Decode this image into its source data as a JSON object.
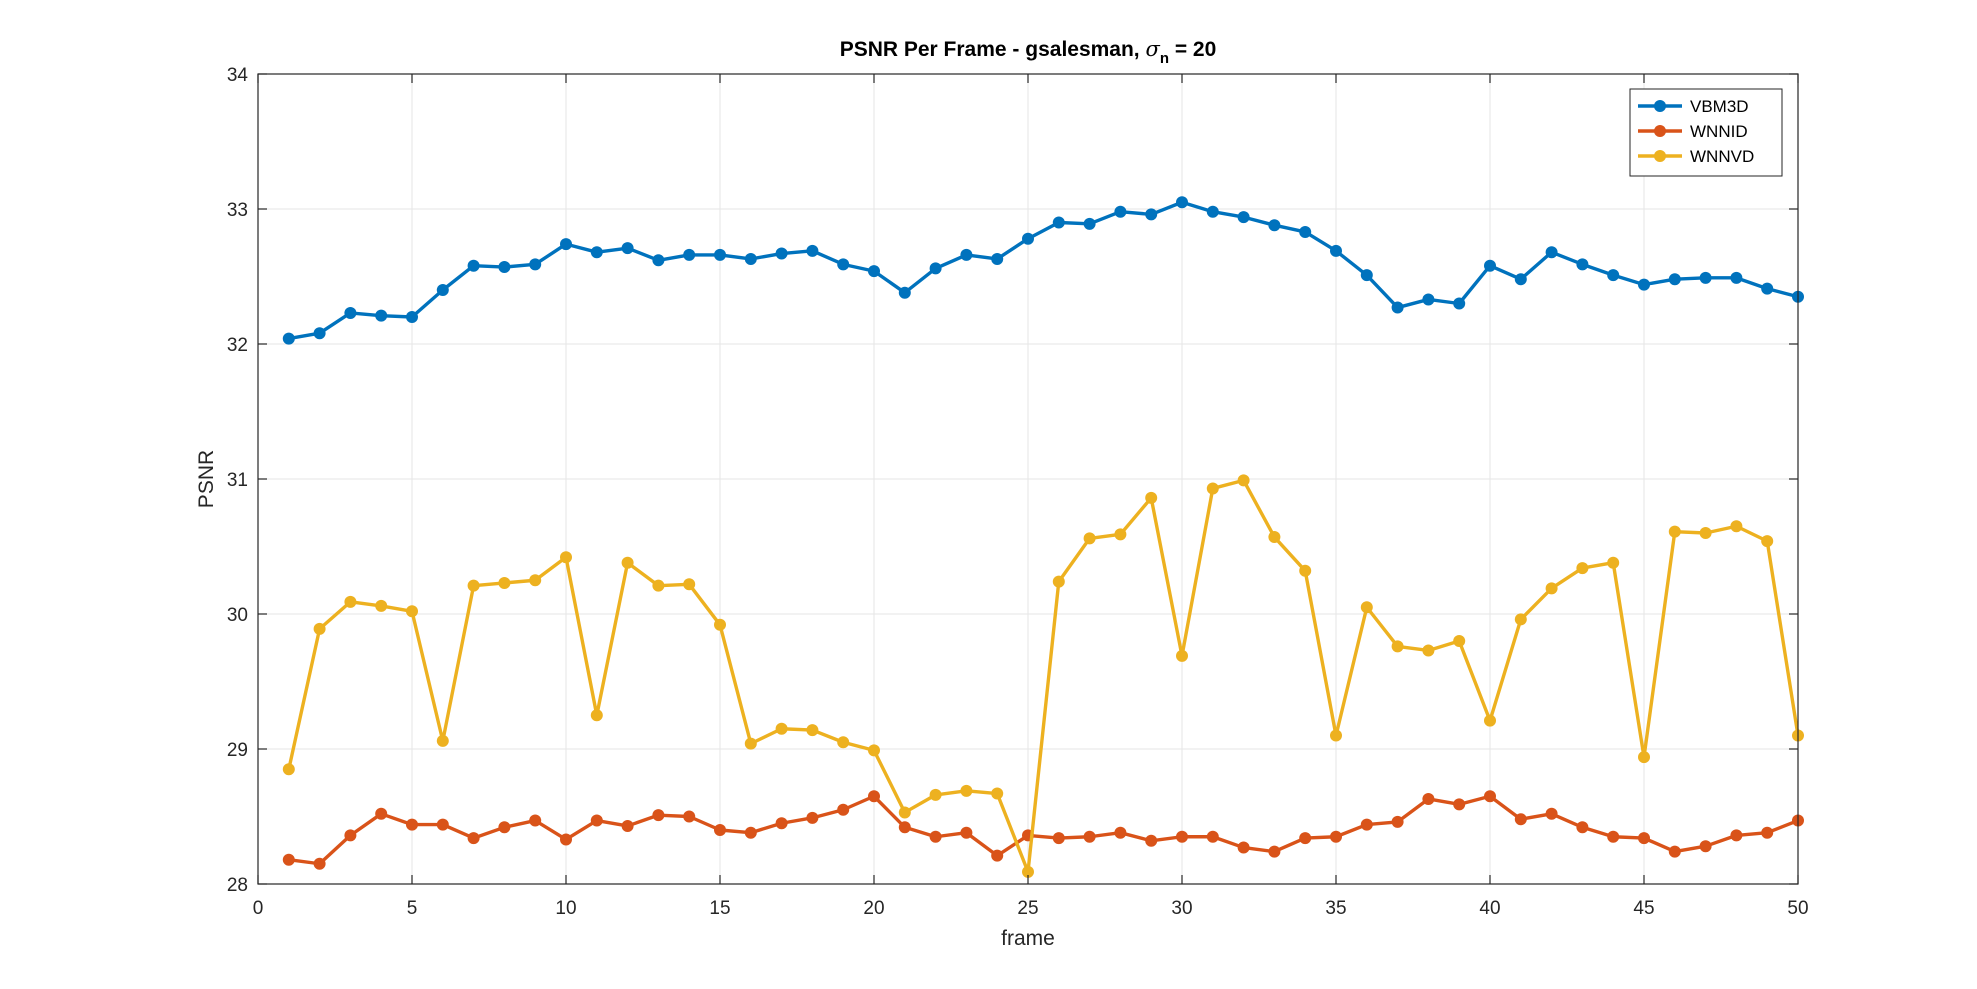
{
  "chart_data": {
    "type": "line",
    "title": {
      "prefix": "PSNR Per Frame - gsalesman, ",
      "sigma": "σ",
      "subscript": "n",
      "suffix": " = 20"
    },
    "xlabel": "frame",
    "ylabel": "PSNR",
    "xlim": [
      0,
      50
    ],
    "ylim": [
      28,
      34
    ],
    "xticks": [
      0,
      5,
      10,
      15,
      20,
      25,
      30,
      35,
      40,
      45,
      50
    ],
    "yticks": [
      28,
      29,
      30,
      31,
      32,
      33,
      34
    ],
    "grid": true,
    "legend_position": "top-right",
    "x": [
      1,
      2,
      3,
      4,
      5,
      6,
      7,
      8,
      9,
      10,
      11,
      12,
      13,
      14,
      15,
      16,
      17,
      18,
      19,
      20,
      21,
      22,
      23,
      24,
      25,
      26,
      27,
      28,
      29,
      30,
      31,
      32,
      33,
      34,
      35,
      36,
      37,
      38,
      39,
      40,
      41,
      42,
      43,
      44,
      45,
      46,
      47,
      48,
      49,
      50
    ],
    "series": [
      {
        "name": "VBM3D",
        "color": "#0072BD",
        "values": [
          32.04,
          32.08,
          32.23,
          32.21,
          32.2,
          32.4,
          32.58,
          32.57,
          32.59,
          32.74,
          32.68,
          32.71,
          32.62,
          32.66,
          32.66,
          32.63,
          32.67,
          32.69,
          32.59,
          32.54,
          32.38,
          32.56,
          32.66,
          32.63,
          32.78,
          32.9,
          32.89,
          32.98,
          32.96,
          33.05,
          32.98,
          32.94,
          32.88,
          32.83,
          32.69,
          32.51,
          32.27,
          32.33,
          32.3,
          32.58,
          32.48,
          32.68,
          32.59,
          32.51,
          32.44,
          32.48,
          32.49,
          32.49,
          32.41,
          32.35
        ]
      },
      {
        "name": "WNNID",
        "color": "#D95319",
        "values": [
          28.18,
          28.15,
          28.36,
          28.52,
          28.44,
          28.44,
          28.34,
          28.42,
          28.47,
          28.33,
          28.47,
          28.43,
          28.51,
          28.5,
          28.4,
          28.38,
          28.45,
          28.49,
          28.55,
          28.65,
          28.42,
          28.35,
          28.38,
          28.21,
          28.36,
          28.34,
          28.35,
          28.38,
          28.32,
          28.35,
          28.35,
          28.27,
          28.24,
          28.34,
          28.35,
          28.44,
          28.46,
          28.63,
          28.59,
          28.65,
          28.48,
          28.52,
          28.42,
          28.35,
          28.34,
          28.24,
          28.28,
          28.36,
          28.38,
          28.47
        ]
      },
      {
        "name": "WNNVD",
        "color": "#EDB120",
        "values": [
          28.85,
          29.89,
          30.09,
          30.06,
          30.02,
          29.06,
          30.21,
          30.23,
          30.25,
          30.42,
          29.25,
          30.38,
          30.21,
          30.22,
          29.92,
          29.04,
          29.15,
          29.14,
          29.05,
          28.99,
          28.53,
          28.66,
          28.69,
          28.67,
          28.09,
          30.24,
          30.56,
          30.59,
          30.86,
          29.69,
          30.93,
          30.99,
          30.57,
          30.32,
          29.1,
          30.05,
          29.76,
          29.73,
          29.8,
          29.21,
          29.96,
          30.19,
          30.34,
          30.38,
          28.94,
          30.61,
          30.6,
          30.65,
          30.54,
          29.1
        ]
      }
    ]
  }
}
